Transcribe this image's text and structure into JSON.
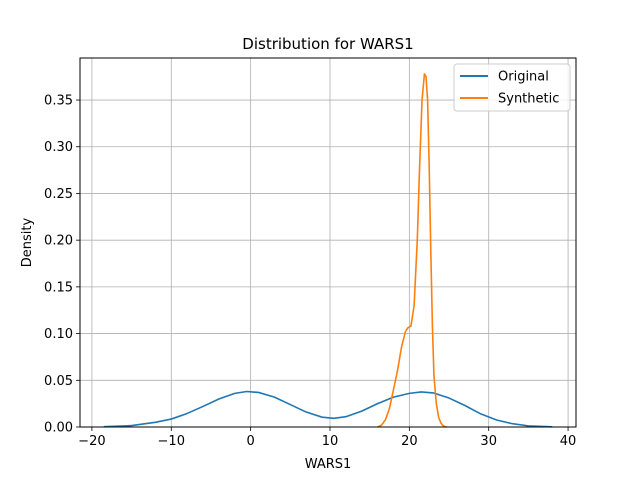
{
  "chart_data": {
    "type": "line",
    "title": "Distribution for WARS1",
    "xlabel": "WARS1",
    "ylabel": "Density",
    "xlim": [
      -21.5,
      41.0
    ],
    "ylim": [
      0.0,
      0.395
    ],
    "xticks": [
      -20,
      -10,
      0,
      10,
      20,
      30,
      40
    ],
    "yticks": [
      0.0,
      0.05,
      0.1,
      0.15,
      0.2,
      0.25,
      0.3,
      0.35
    ],
    "xtick_labels": [
      "−20",
      "−10",
      "0",
      "10",
      "20",
      "30",
      "40"
    ],
    "ytick_labels": [
      "0.00",
      "0.05",
      "0.10",
      "0.15",
      "0.20",
      "0.25",
      "0.30",
      "0.35"
    ],
    "grid": true,
    "legend_position": "top-right",
    "series": [
      {
        "name": "Original",
        "color": "#1f77b4",
        "x": [
          -18.5,
          -15,
          -12,
          -10,
          -8,
          -6,
          -4,
          -2,
          -0.5,
          1,
          3,
          5,
          7,
          9,
          10.5,
          12,
          14,
          16,
          18,
          20,
          21.5,
          23,
          25,
          27,
          29,
          31,
          33,
          35,
          38
        ],
        "y": [
          0.0003,
          0.0015,
          0.005,
          0.0085,
          0.0145,
          0.022,
          0.03,
          0.036,
          0.038,
          0.037,
          0.032,
          0.024,
          0.016,
          0.0105,
          0.0093,
          0.011,
          0.017,
          0.025,
          0.032,
          0.036,
          0.0375,
          0.0365,
          0.031,
          0.023,
          0.014,
          0.0075,
          0.0035,
          0.0012,
          0.0002
        ]
      },
      {
        "name": "Synthetic",
        "color": "#ff7f0e",
        "x": [
          16.0,
          16.5,
          17.0,
          17.5,
          18.0,
          18.5,
          19.0,
          19.5,
          19.8,
          20.2,
          20.6,
          21.0,
          21.3,
          21.6,
          21.9,
          22.1,
          22.3,
          22.5,
          22.7,
          22.9,
          23.1,
          23.4,
          23.7,
          24.0,
          24.3,
          24.7
        ],
        "y": [
          0.0,
          0.002,
          0.008,
          0.02,
          0.04,
          0.06,
          0.085,
          0.102,
          0.106,
          0.108,
          0.13,
          0.2,
          0.28,
          0.35,
          0.378,
          0.375,
          0.35,
          0.28,
          0.19,
          0.11,
          0.055,
          0.025,
          0.01,
          0.004,
          0.001,
          0.0
        ]
      }
    ]
  }
}
